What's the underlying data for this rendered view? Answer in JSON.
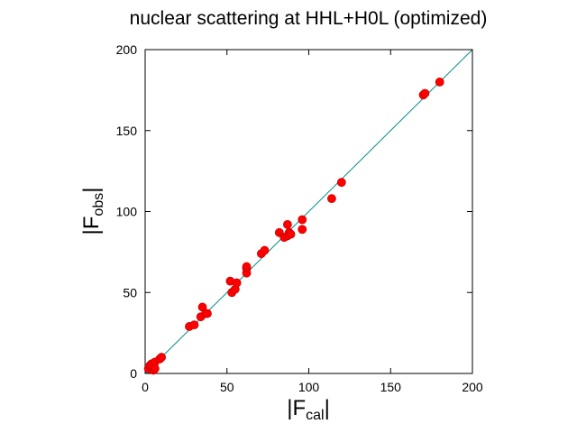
{
  "chart_data": {
    "type": "scatter",
    "title": "nuclear scattering at HHL+H0L (optimized)",
    "xlabel": {
      "prefix": "|F",
      "sub": "cal",
      "suffix": "|"
    },
    "ylabel": {
      "prefix": "|F",
      "sub": "obs",
      "suffix": "|"
    },
    "xlim": [
      0,
      200
    ],
    "ylim": [
      0,
      200
    ],
    "xticks": [
      "0",
      "50",
      "100",
      "150",
      "200"
    ],
    "yticks": [
      "0",
      "50",
      "100",
      "150",
      "200"
    ],
    "grid": false,
    "reference_line": {
      "from": [
        0,
        0
      ],
      "to": [
        200,
        200
      ],
      "color": "#008b8b"
    },
    "marker_color": "#ff0000",
    "series": [
      {
        "points": [
          [
            2,
            3
          ],
          [
            3,
            5
          ],
          [
            4,
            6
          ],
          [
            5,
            2
          ],
          [
            5,
            4
          ],
          [
            6,
            7
          ],
          [
            6,
            3
          ],
          [
            9,
            9
          ],
          [
            10,
            10
          ],
          [
            27,
            29
          ],
          [
            30,
            30
          ],
          [
            34,
            35
          ],
          [
            35,
            41
          ],
          [
            37,
            37
          ],
          [
            38,
            37
          ],
          [
            52,
            57
          ],
          [
            53,
            50
          ],
          [
            55,
            52
          ],
          [
            56,
            56
          ],
          [
            62,
            62
          ],
          [
            62,
            65
          ],
          [
            62,
            66
          ],
          [
            71,
            74
          ],
          [
            73,
            76
          ],
          [
            82,
            87
          ],
          [
            85,
            84
          ],
          [
            87,
            92
          ],
          [
            87,
            85
          ],
          [
            88,
            87
          ],
          [
            89,
            86
          ],
          [
            96,
            95
          ],
          [
            96,
            89
          ],
          [
            114,
            108
          ],
          [
            120,
            118
          ],
          [
            170,
            172
          ],
          [
            171,
            173
          ],
          [
            180,
            180
          ]
        ]
      }
    ]
  }
}
